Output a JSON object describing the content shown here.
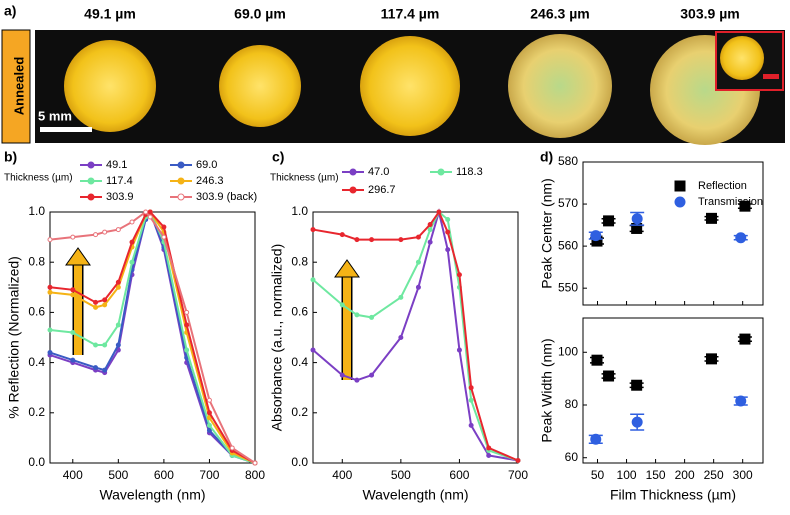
{
  "figure_a": {
    "panel": "a)",
    "labels": [
      "49.1 µm",
      "69.0 µm",
      "117.4 µm",
      "246.3 µm",
      "303.9 µm"
    ],
    "side_label": "Annealed",
    "scale_bar": "5 mm"
  },
  "chart_data": [
    {
      "type": "line",
      "panel": "b)",
      "legend_title": "Thickness (µm)",
      "xlabel": "Wavelength (nm)",
      "ylabel": "% Reflection (Normalized)",
      "x": [
        350,
        400,
        450,
        470,
        500,
        530,
        560,
        570,
        600,
        650,
        700,
        750,
        800
      ],
      "series": [
        {
          "name": "49.1",
          "color": "#7b3fc4",
          "values": [
            0.43,
            0.4,
            0.37,
            0.36,
            0.45,
            0.75,
            0.97,
            1.0,
            0.85,
            0.4,
            0.12,
            0.03,
            0.0
          ]
        },
        {
          "name": "69.0",
          "color": "#3a5bc4",
          "values": [
            0.44,
            0.41,
            0.38,
            0.37,
            0.47,
            0.77,
            0.97,
            1.0,
            0.86,
            0.42,
            0.13,
            0.03,
            0.0
          ]
        },
        {
          "name": "117.4",
          "color": "#6ee8a0",
          "values": [
            0.53,
            0.52,
            0.47,
            0.47,
            0.55,
            0.8,
            0.98,
            1.0,
            0.88,
            0.45,
            0.15,
            0.03,
            0.0
          ]
        },
        {
          "name": "246.3",
          "color": "#f5b316",
          "values": [
            0.68,
            0.67,
            0.62,
            0.63,
            0.7,
            0.86,
            0.99,
            1.0,
            0.92,
            0.52,
            0.18,
            0.04,
            0.0
          ]
        },
        {
          "name": "303.9",
          "color": "#e8262e",
          "values": [
            0.7,
            0.69,
            0.64,
            0.65,
            0.72,
            0.88,
            0.99,
            1.0,
            0.94,
            0.55,
            0.2,
            0.05,
            0.0
          ]
        },
        {
          "name": "303.9 (back)",
          "color": "#e8737a",
          "hollow": true,
          "values": [
            0.89,
            0.9,
            0.91,
            0.92,
            0.93,
            0.96,
            1.0,
            0.98,
            0.9,
            0.6,
            0.25,
            0.06,
            0.0
          ]
        }
      ],
      "xlim": [
        350,
        800
      ],
      "xticks": [
        400,
        500,
        600,
        700,
        800
      ],
      "ylim": [
        0,
        1
      ],
      "yticks": [
        {
          "value": 0,
          "label": "0.0"
        },
        0.2,
        0.4,
        0.6,
        0.8,
        {
          "value": 1,
          "label": "1.0"
        }
      ]
    },
    {
      "type": "line",
      "panel": "c)",
      "legend_title": "Thickness (µm)",
      "xlabel": "Wavelength (nm)",
      "ylabel": "Absorbance (a.u., normalized)",
      "x": [
        350,
        400,
        425,
        450,
        500,
        530,
        550,
        565,
        580,
        600,
        620,
        650,
        700
      ],
      "series": [
        {
          "name": "47.0",
          "color": "#7b3fc4",
          "values": [
            0.45,
            0.35,
            0.33,
            0.35,
            0.5,
            0.7,
            0.88,
            1.0,
            0.85,
            0.45,
            0.15,
            0.03,
            0.01
          ]
        },
        {
          "name": "118.3",
          "color": "#6ee8a0",
          "values": [
            0.73,
            0.63,
            0.59,
            0.58,
            0.66,
            0.8,
            0.93,
            1.0,
            0.97,
            0.7,
            0.25,
            0.05,
            0.01
          ]
        },
        {
          "name": "296.7",
          "color": "#e8262e",
          "values": [
            0.93,
            0.91,
            0.89,
            0.89,
            0.89,
            0.9,
            0.95,
            1.0,
            0.92,
            0.75,
            0.3,
            0.06,
            0.01
          ]
        }
      ],
      "xlim": [
        350,
        700
      ],
      "xticks": [
        400,
        500,
        600,
        700
      ],
      "ylim": [
        0,
        1
      ],
      "yticks": [
        {
          "value": 0,
          "label": "0.0"
        },
        0.2,
        0.4,
        0.6,
        0.8,
        {
          "value": 1,
          "label": "1.0"
        }
      ]
    },
    {
      "type": "scatter",
      "panel": "d)",
      "ylabel": "Peak Center (nm)",
      "series": [
        {
          "name": "Reflection",
          "color": "#000000",
          "marker": "square",
          "x": [
            49.1,
            69.0,
            117.4,
            246.3,
            303.9
          ],
          "values": [
            561.2,
            566,
            564.2,
            566.6,
            569.5
          ],
          "errors": [
            0.7,
            0.5,
            0.7,
            0.4,
            0.5
          ]
        },
        {
          "name": "Transmission",
          "color": "#2f5fe0",
          "marker": "circle",
          "x": [
            47.0,
            118.3,
            296.7
          ],
          "values": [
            562.5,
            566.5,
            562
          ],
          "errors": [
            0.8,
            1.5,
            0.5
          ]
        }
      ],
      "xlim": [
        25,
        335
      ],
      "ylim": [
        546,
        580
      ],
      "yticks": [
        550,
        560,
        570,
        580
      ]
    },
    {
      "type": "scatter",
      "xlabel": "Film Thickness (µm)",
      "ylabel": "Peak Width (nm)",
      "series": [
        {
          "name": "Reflection",
          "color": "#000000",
          "marker": "square",
          "x": [
            49.1,
            69.0,
            117.4,
            246.3,
            303.9
          ],
          "values": [
            97,
            91,
            87.5,
            97.5,
            105
          ],
          "errors": [
            1,
            0.8,
            0.8,
            0.8,
            0.8
          ]
        },
        {
          "name": "Transmission",
          "color": "#2f5fe0",
          "marker": "circle",
          "x": [
            47.0,
            118.3,
            296.7
          ],
          "values": [
            67,
            73.5,
            81.5
          ],
          "errors": [
            1.5,
            3,
            1.5
          ]
        }
      ],
      "xlim": [
        25,
        335
      ],
      "xticks": [
        50,
        100,
        150,
        200,
        250,
        300
      ],
      "ylim": [
        58,
        113
      ],
      "yticks": [
        60,
        80,
        100
      ]
    }
  ]
}
